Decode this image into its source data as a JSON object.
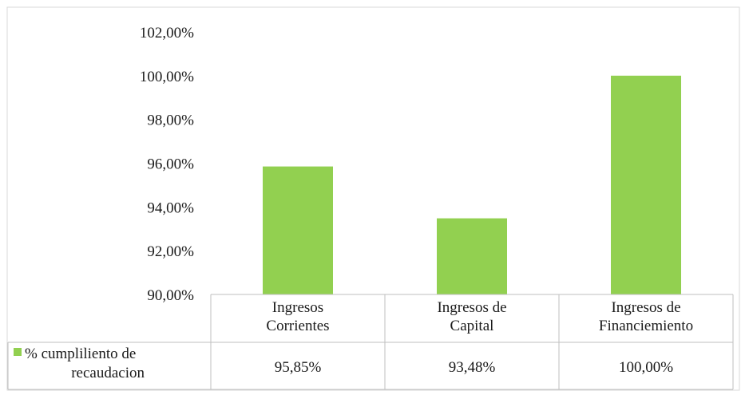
{
  "chart_data": {
    "type": "bar",
    "categories": [
      [
        "Ingresos",
        "Corrientes"
      ],
      [
        "Ingresos de",
        "Capital"
      ],
      [
        "Ingresos de",
        "Financiemiento"
      ]
    ],
    "series": [
      {
        "name": [
          "% cumpliliento de",
          "recaudacion"
        ],
        "values": [
          95.85,
          93.48,
          100.0
        ],
        "value_labels": [
          "95,85%",
          "93,48%",
          "100,00%"
        ],
        "color": "#92d050"
      }
    ],
    "yticks": [
      "90,00%",
      "92,00%",
      "94,00%",
      "96,00%",
      "98,00%",
      "100,00%",
      "102,00%"
    ],
    "ylim": [
      90,
      102
    ],
    "grid": false,
    "legend": "data-table",
    "colors": {
      "bar": "#92d050",
      "table_border": "#bfbfbf",
      "frame_border": "#d9d9d9",
      "text": "#1a1a1a"
    }
  }
}
